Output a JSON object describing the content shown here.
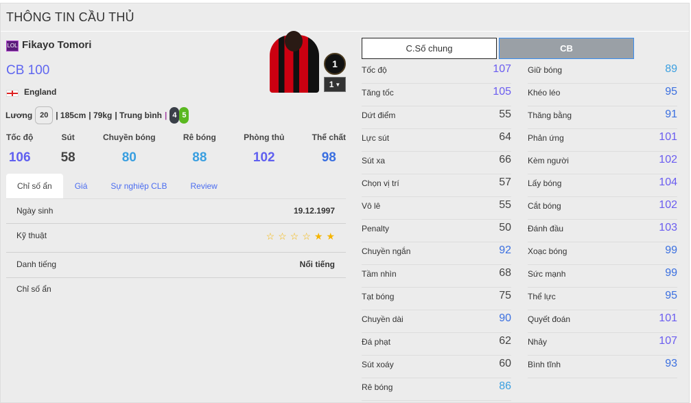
{
  "title": "THÔNG TIN CẦU THỦ",
  "player": {
    "season_badge": "LOL",
    "name": "Fikayo Tomori",
    "position_rating": "CB 100",
    "country": "England",
    "salary_label": "Lương",
    "salary": "20",
    "height": "| 185cm",
    "weight": "| 79kg",
    "body": "| Trung bình",
    "sep": "|",
    "left_foot": "4",
    "right_foot": "5",
    "level": "1",
    "upgrade": "1"
  },
  "summary": [
    {
      "label": "Tốc độ",
      "value": "106",
      "color": "#5f5ff0"
    },
    {
      "label": "Sút",
      "value": "58",
      "color": "#444444"
    },
    {
      "label": "Chuyền bóng",
      "value": "80",
      "color": "#3a9fe0"
    },
    {
      "label": "Rê bóng",
      "value": "88",
      "color": "#3a9fe0"
    },
    {
      "label": "Phòng thủ",
      "value": "102",
      "color": "#5f5ff0"
    },
    {
      "label": "Thể chất",
      "value": "98",
      "color": "#3a6fe0"
    }
  ],
  "tabs": [
    "Chỉ số ẩn",
    "Giá",
    "Sự nghiệp CLB",
    "Review"
  ],
  "details": {
    "birth_label": "Ngày sinh",
    "birth": "19.12.1997",
    "skill_label": "Kỹ thuật",
    "skill_stars_filled": 2,
    "skill_stars_total": 6,
    "rep_label": "Danh tiếng",
    "rep": "Nổi tiếng",
    "hidden_label": "Chỉ số ẩn"
  },
  "buttons": {
    "general": "C.Số chung",
    "position": "CB"
  },
  "colors": {
    "tier100": "#6a5cf0",
    "tier90": "#3a6fe0",
    "tier80": "#3a9fe0",
    "low": "#444444",
    "star": "#f5b400"
  },
  "stats_left": [
    [
      "Tốc độ",
      107
    ],
    [
      "Tăng tốc",
      105
    ],
    [
      "Dứt điểm",
      55
    ],
    [
      "Lực sút",
      64
    ],
    [
      "Sút xa",
      66
    ],
    [
      "Chọn vị trí",
      57
    ],
    [
      "Vô lê",
      55
    ],
    [
      "Penalty",
      50
    ],
    [
      "Chuyền ngắn",
      92
    ],
    [
      "Tầm nhìn",
      68
    ],
    [
      "Tạt bóng",
      75
    ],
    [
      "Chuyền dài",
      90
    ],
    [
      "Đá phạt",
      62
    ],
    [
      "Sút xoáy",
      60
    ],
    [
      "Rê bóng",
      86
    ]
  ],
  "stats_right": [
    [
      "Giữ bóng",
      89
    ],
    [
      "Khéo léo",
      95
    ],
    [
      "Thăng bằng",
      91
    ],
    [
      "Phản ứng",
      101
    ],
    [
      "Kèm người",
      102
    ],
    [
      "Lấy bóng",
      104
    ],
    [
      "Cắt bóng",
      102
    ],
    [
      "Đánh đầu",
      103
    ],
    [
      "Xoạc bóng",
      99
    ],
    [
      "Sức mạnh",
      99
    ],
    [
      "Thể lực",
      95
    ],
    [
      "Quyết đoán",
      101
    ],
    [
      "Nhảy",
      107
    ],
    [
      "Bình tĩnh",
      93
    ]
  ]
}
